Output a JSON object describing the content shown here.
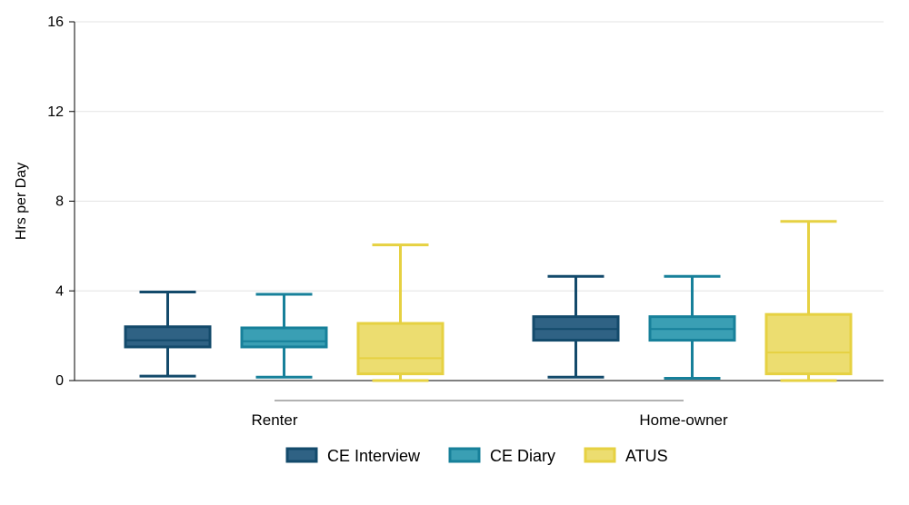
{
  "chart_data": {
    "type": "box",
    "ylabel": "Hrs per Day",
    "ylim": [
      0,
      16
    ],
    "yticks": [
      0,
      4,
      8,
      12,
      16
    ],
    "grid": true,
    "legend_position": "bottom",
    "categories": [
      "Renter",
      "Home-owner"
    ],
    "series": [
      {
        "name": "CE Interview",
        "fill": "#2f6284",
        "stroke": "#134a6b",
        "boxes": [
          {
            "min": 0.2,
            "q1": 1.5,
            "median": 1.8,
            "q3": 2.4,
            "max": 3.95
          },
          {
            "min": 0.15,
            "q1": 1.8,
            "median": 2.3,
            "q3": 2.85,
            "max": 4.65
          }
        ]
      },
      {
        "name": "CE Diary",
        "fill": "#3a9fb4",
        "stroke": "#17809a",
        "boxes": [
          {
            "min": 0.15,
            "q1": 1.5,
            "median": 1.75,
            "q3": 2.35,
            "max": 3.85
          },
          {
            "min": 0.1,
            "q1": 1.8,
            "median": 2.3,
            "q3": 2.85,
            "max": 4.65
          }
        ]
      },
      {
        "name": "ATUS",
        "fill": "#ecdd70",
        "stroke": "#e6d142",
        "boxes": [
          {
            "min": 0.0,
            "q1": 0.3,
            "median": 1.0,
            "q3": 2.55,
            "max": 6.05
          },
          {
            "min": 0.0,
            "q1": 0.3,
            "median": 1.25,
            "q3": 2.95,
            "max": 7.1
          }
        ]
      }
    ]
  }
}
